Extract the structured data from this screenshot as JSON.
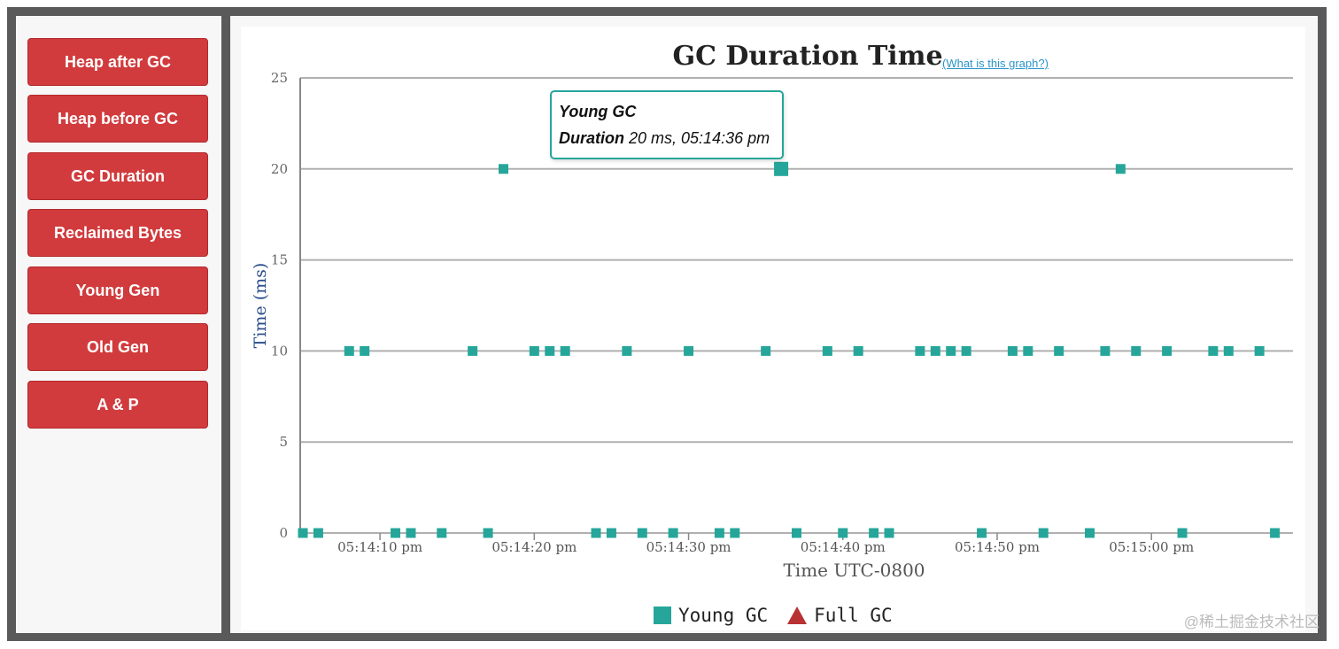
{
  "sidebar": {
    "buttons": [
      {
        "label": "Heap after GC"
      },
      {
        "label": "Heap before GC"
      },
      {
        "label": "GC Duration"
      },
      {
        "label": "Reclaimed Bytes"
      },
      {
        "label": "Young Gen"
      },
      {
        "label": "Old Gen"
      },
      {
        "label": "A & P"
      }
    ]
  },
  "main": {
    "title": "GC Duration Time",
    "help_link": "(What is this graph?)"
  },
  "tooltip": {
    "series": "Young GC",
    "label": "Duration",
    "value": "20 ms, 05:14:36 pm"
  },
  "watermark": "@稀土掘金技术社区",
  "colors": {
    "button": "#d13b3d",
    "young_gc": "#26a69a",
    "full_gc": "#b83233",
    "axis_title": "#274b8a"
  },
  "chart_data": {
    "type": "scatter",
    "title": "GC Duration Time",
    "xlabel": "Time UTC-0800",
    "ylabel": "Time (ms)",
    "ylim": [
      0,
      25
    ],
    "yticks": [
      0,
      5,
      10,
      15,
      20,
      25
    ],
    "xlim": [
      "05:14:05 pm",
      "05:15:09 pm"
    ],
    "xticks": [
      "05:14:10 pm",
      "05:14:20 pm",
      "05:14:30 pm",
      "05:14:40 pm",
      "05:14:50 pm",
      "05:15:00 pm"
    ],
    "grid": true,
    "legend": "bottom",
    "highlighted": {
      "series": "Young GC",
      "x": "05:14:36 pm",
      "y": 20
    },
    "series": [
      {
        "name": "Young GC",
        "marker": "square",
        "x": [
          "05:14:05 pm",
          "05:14:06 pm",
          "05:14:08 pm",
          "05:14:09 pm",
          "05:14:11 pm",
          "05:14:12 pm",
          "05:14:14 pm",
          "05:14:16 pm",
          "05:14:17 pm",
          "05:14:18 pm",
          "05:14:20 pm",
          "05:14:21 pm",
          "05:14:22 pm",
          "05:14:24 pm",
          "05:14:25 pm",
          "05:14:26 pm",
          "05:14:27 pm",
          "05:14:29 pm",
          "05:14:30 pm",
          "05:14:32 pm",
          "05:14:33 pm",
          "05:14:35 pm",
          "05:14:36 pm",
          "05:14:37 pm",
          "05:14:39 pm",
          "05:14:40 pm",
          "05:14:41 pm",
          "05:14:42 pm",
          "05:14:43 pm",
          "05:14:45 pm",
          "05:14:46 pm",
          "05:14:47 pm",
          "05:14:48 pm",
          "05:14:49 pm",
          "05:14:51 pm",
          "05:14:52 pm",
          "05:14:53 pm",
          "05:14:54 pm",
          "05:14:56 pm",
          "05:14:57 pm",
          "05:14:58 pm",
          "05:14:59 pm",
          "05:15:01 pm",
          "05:15:02 pm",
          "05:15:04 pm",
          "05:15:05 pm",
          "05:15:07 pm",
          "05:15:08 pm"
        ],
        "y": [
          0,
          0,
          10,
          10,
          0,
          0,
          0,
          10,
          0,
          20,
          10,
          10,
          10,
          0,
          0,
          10,
          0,
          0,
          10,
          0,
          0,
          10,
          20,
          0,
          10,
          0,
          10,
          0,
          0,
          10,
          10,
          10,
          10,
          0,
          10,
          10,
          0,
          10,
          0,
          10,
          20,
          10,
          10,
          0,
          10,
          10,
          10,
          0
        ]
      },
      {
        "name": "Full GC",
        "marker": "triangle",
        "x": [],
        "y": []
      }
    ]
  }
}
